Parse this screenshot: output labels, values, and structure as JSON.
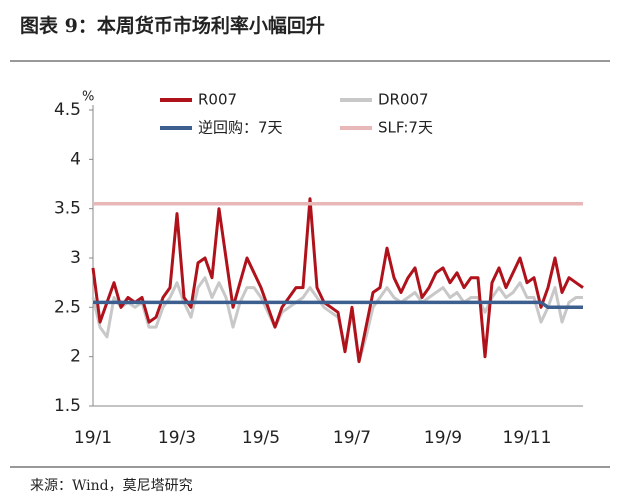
{
  "chart_data": {
    "type": "line",
    "title": "图表 9：本周货币市场利率小幅回升",
    "y_unit": "%",
    "source": "来源：Wind，莫尼塔研究",
    "categories": [
      "19/1",
      null,
      null,
      null,
      null,
      null,
      null,
      null,
      null,
      null,
      null,
      null,
      "19/3",
      null,
      null,
      null,
      null,
      null,
      null,
      null,
      null,
      null,
      null,
      null,
      "19/5",
      null,
      null,
      null,
      null,
      null,
      null,
      null,
      null,
      null,
      null,
      null,
      null,
      "19/7",
      null,
      null,
      null,
      null,
      null,
      null,
      null,
      null,
      null,
      null,
      null,
      null,
      "19/9",
      null,
      null,
      null,
      null,
      null,
      null,
      null,
      null,
      null,
      null,
      null,
      "19/11",
      null,
      null,
      null,
      null,
      null,
      null,
      null,
      null
    ],
    "ylim": [
      1.5,
      4.5
    ],
    "yticks": [
      1.5,
      2,
      2.5,
      3,
      3.5,
      4,
      4.5
    ],
    "legend": "top",
    "series": [
      {
        "name": "R007",
        "color": "#b0121b",
        "values": [
          2.9,
          2.35,
          2.55,
          2.75,
          2.5,
          2.6,
          2.55,
          2.6,
          2.35,
          2.4,
          2.6,
          2.7,
          3.45,
          2.6,
          2.5,
          2.95,
          3.0,
          2.8,
          3.5,
          3.0,
          2.5,
          2.75,
          3.0,
          2.85,
          2.7,
          2.5,
          2.3,
          2.5,
          2.6,
          2.7,
          2.7,
          3.6,
          2.7,
          2.55,
          2.5,
          2.45,
          2.05,
          2.5,
          1.95,
          2.3,
          2.65,
          2.7,
          3.1,
          2.8,
          2.65,
          2.8,
          2.9,
          2.6,
          2.7,
          2.85,
          2.9,
          2.75,
          2.85,
          2.7,
          2.8,
          2.8,
          2.0,
          2.75,
          2.9,
          2.7,
          2.85,
          3.0,
          2.75,
          2.8,
          2.5,
          2.7,
          3.0,
          2.65,
          2.8,
          2.75,
          2.7
        ]
      },
      {
        "name": "DR007",
        "color": "#c8c8c8",
        "values": [
          2.6,
          2.3,
          2.2,
          2.6,
          2.5,
          2.55,
          2.5,
          2.55,
          2.3,
          2.3,
          2.5,
          2.6,
          2.75,
          2.55,
          2.4,
          2.7,
          2.8,
          2.6,
          2.75,
          2.6,
          2.3,
          2.55,
          2.7,
          2.7,
          2.6,
          2.45,
          2.3,
          2.45,
          2.5,
          2.55,
          2.6,
          2.7,
          2.6,
          2.5,
          2.45,
          2.4,
          2.1,
          2.45,
          1.95,
          2.2,
          2.5,
          2.6,
          2.7,
          2.6,
          2.55,
          2.6,
          2.65,
          2.55,
          2.6,
          2.65,
          2.7,
          2.6,
          2.65,
          2.55,
          2.6,
          2.6,
          2.45,
          2.6,
          2.7,
          2.6,
          2.65,
          2.75,
          2.6,
          2.6,
          2.35,
          2.5,
          2.7,
          2.35,
          2.55,
          2.6,
          2.6
        ]
      },
      {
        "name": "逆回购：7天",
        "color": "#3d5f8f",
        "values": [
          2.55,
          2.55,
          2.55,
          2.55,
          2.55,
          2.55,
          2.55,
          2.55,
          2.55,
          2.55,
          2.55,
          2.55,
          2.55,
          2.55,
          2.55,
          2.55,
          2.55,
          2.55,
          2.55,
          2.55,
          2.55,
          2.55,
          2.55,
          2.55,
          2.55,
          2.55,
          2.55,
          2.55,
          2.55,
          2.55,
          2.55,
          2.55,
          2.55,
          2.55,
          2.55,
          2.55,
          2.55,
          2.55,
          2.55,
          2.55,
          2.55,
          2.55,
          2.55,
          2.55,
          2.55,
          2.55,
          2.55,
          2.55,
          2.55,
          2.55,
          2.55,
          2.55,
          2.55,
          2.55,
          2.55,
          2.55,
          2.55,
          2.55,
          2.55,
          2.55,
          2.55,
          2.55,
          2.55,
          2.55,
          2.55,
          2.5,
          2.5,
          2.5,
          2.5,
          2.5,
          2.5
        ]
      },
      {
        "name": "SLF:7天",
        "color": "#e8b8b8",
        "values": [
          3.55,
          3.55,
          3.55,
          3.55,
          3.55,
          3.55,
          3.55,
          3.55,
          3.55,
          3.55,
          3.55,
          3.55,
          3.55,
          3.55,
          3.55,
          3.55,
          3.55,
          3.55,
          3.55,
          3.55,
          3.55,
          3.55,
          3.55,
          3.55,
          3.55,
          3.55,
          3.55,
          3.55,
          3.55,
          3.55,
          3.55,
          3.55,
          3.55,
          3.55,
          3.55,
          3.55,
          3.55,
          3.55,
          3.55,
          3.55,
          3.55,
          3.55,
          3.55,
          3.55,
          3.55,
          3.55,
          3.55,
          3.55,
          3.55,
          3.55,
          3.55,
          3.55,
          3.55,
          3.55,
          3.55,
          3.55,
          3.55,
          3.55,
          3.55,
          3.55,
          3.55,
          3.55,
          3.55,
          3.55,
          3.55,
          3.55,
          3.55,
          3.55,
          3.55,
          3.55,
          3.55
        ]
      }
    ]
  }
}
